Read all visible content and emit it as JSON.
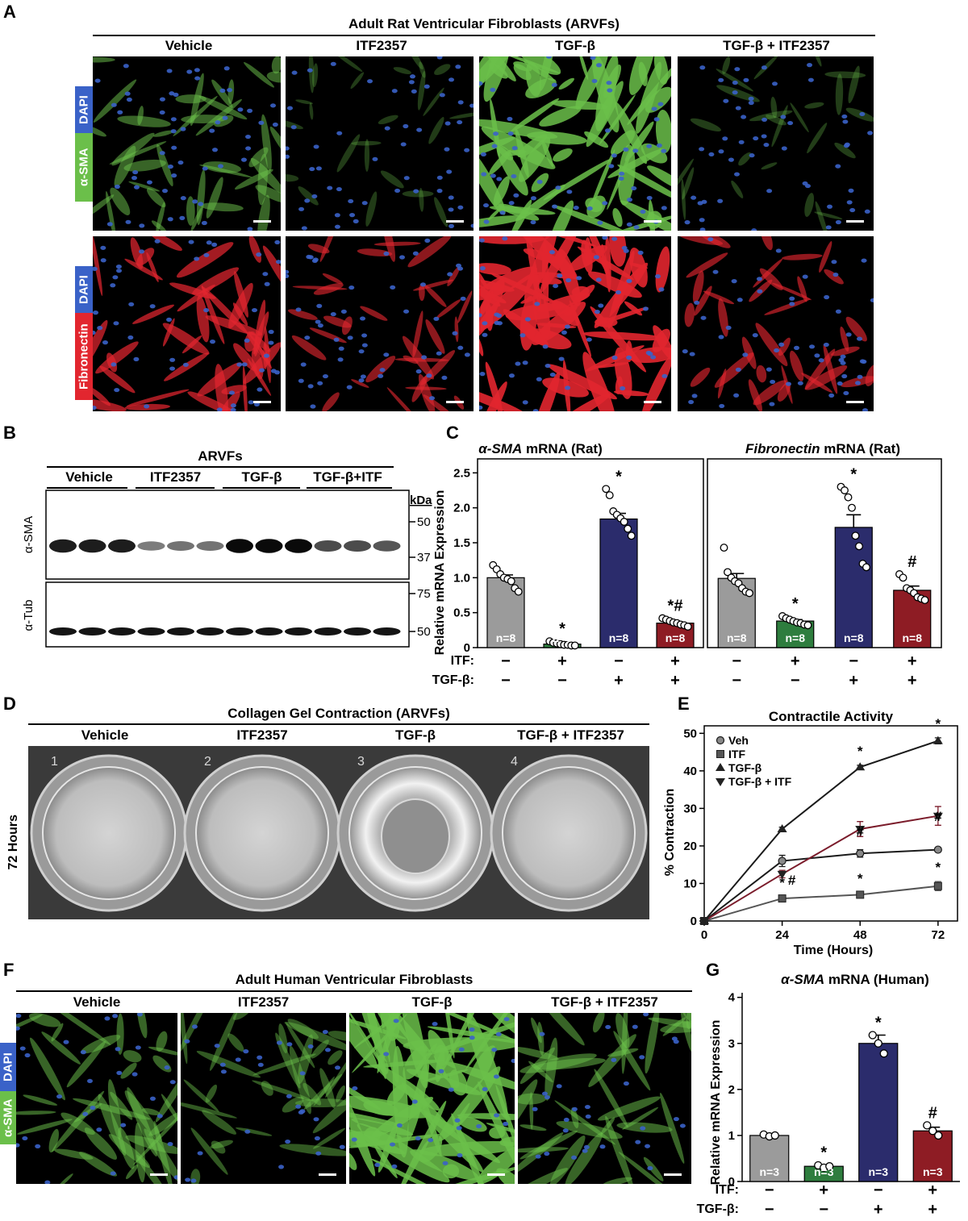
{
  "panels": {
    "A": {
      "label": "A",
      "title": "Adult Rat Ventricular Fibroblasts (ARVFs)",
      "columns": [
        "Vehicle",
        "ITF2357",
        "TGF-β",
        "TGF-β + ITF2357"
      ],
      "row1_tags": [
        "DAPI",
        "α-SMA"
      ],
      "row2_tags": [
        "DAPI",
        "Fibronectin"
      ],
      "colors": {
        "dapi": "#3a62c8",
        "sma": "#6bbf4a",
        "fibronectin": "#e2262f"
      }
    },
    "B": {
      "label": "B",
      "title": "ARVFs",
      "lanes": [
        "Vehicle",
        "ITF2357",
        "TGF-β",
        "TGF-β+ITF"
      ],
      "blot1_label": "α-SMA",
      "blot2_label": "α-Tub",
      "kda_label": "kDa",
      "markers_top": [
        "50",
        "37"
      ],
      "markers_bottom": [
        "75",
        "50"
      ],
      "sma_band_intensity": [
        0.85,
        0.85,
        0.85,
        0.35,
        0.4,
        0.4,
        0.95,
        0.95,
        0.95,
        0.6,
        0.6,
        0.55
      ]
    },
    "C": {
      "label": "C",
      "title_left_italic": "α-SMA",
      "title_left_rest": " mRNA (Rat)",
      "title_right_italic": "Fibronectin",
      "title_right_rest": " mRNA (Rat)",
      "ylabel": "Relative mRNA Expression",
      "yticks": [
        "0",
        "0.5",
        "1.0",
        "1.5",
        "2.0",
        "2.5"
      ],
      "row_itf_label": "ITF:",
      "row_tgf_label": "TGF-β:",
      "itf_signs": [
        "−",
        "+",
        "−",
        "+",
        "−",
        "+",
        "−",
        "+"
      ],
      "tgf_signs": [
        "−",
        "−",
        "+",
        "+",
        "−",
        "−",
        "+",
        "+"
      ]
    },
    "D": {
      "label": "D",
      "title": "Collagen Gel Contraction (ARVFs)",
      "columns": [
        "Vehicle",
        "ITF2357",
        "TGF-β",
        "TGF-β + ITF2357"
      ],
      "side_label": "72 Hours",
      "well_numbers": [
        "1",
        "2",
        "3",
        "4"
      ]
    },
    "E": {
      "label": "E",
      "title": "Contractile Activity",
      "ylabel": "% Contraction",
      "xlabel": "Time (Hours)",
      "legend": [
        "Veh",
        "ITF",
        "TGF-β",
        "TGF-β + ITF"
      ]
    },
    "F": {
      "label": "F",
      "title": "Adult Human Ventricular Fibroblasts",
      "columns": [
        "Vehicle",
        "ITF2357",
        "TGF-β",
        "TGF-β + ITF2357"
      ],
      "tags": [
        "DAPI",
        "α-SMA"
      ]
    },
    "G": {
      "label": "G",
      "title_italic": "α-SMA",
      "title_rest": " mRNA (Human)",
      "ylabel": "Relative mRNA Expression",
      "yticks": [
        "0",
        "1",
        "2",
        "3",
        "4"
      ],
      "row_itf_label": "ITF:",
      "row_tgf_label": "TGF-β:",
      "itf_signs": [
        "−",
        "+",
        "−",
        "+"
      ],
      "tgf_signs": [
        "−",
        "−",
        "+",
        "+"
      ]
    }
  },
  "chart_data": [
    {
      "type": "bar",
      "panel": "C-left",
      "title": "α-SMA mRNA (Rat)",
      "ylabel": "Relative mRNA Expression",
      "ylim": [
        0,
        2.7
      ],
      "categories": [
        "Vehicle",
        "ITF",
        "TGF-β",
        "TGF-β + ITF"
      ],
      "values": [
        1.0,
        0.05,
        1.84,
        0.35
      ],
      "errors": [
        0.04,
        0.01,
        0.08,
        0.02
      ],
      "n_labels": [
        "n=8",
        "n=8",
        "n=8",
        "n=8"
      ],
      "significance": [
        "",
        "*",
        "*",
        "*#"
      ],
      "colors": [
        "#9b9b9b",
        "#2e7d3e",
        "#2b2c6c",
        "#8e1c24"
      ],
      "points": [
        [
          1.18,
          1.12,
          1.05,
          1.0,
          0.98,
          0.95,
          0.85,
          0.8
        ],
        [
          0.09,
          0.07,
          0.06,
          0.05,
          0.04,
          0.04,
          0.03,
          0.03
        ],
        [
          2.27,
          2.18,
          1.95,
          1.9,
          1.85,
          1.8,
          1.7,
          1.6
        ],
        [
          0.42,
          0.4,
          0.38,
          0.36,
          0.35,
          0.33,
          0.32,
          0.3
        ]
      ]
    },
    {
      "type": "bar",
      "panel": "C-right",
      "title": "Fibronectin mRNA (Rat)",
      "ylabel": "Relative mRNA Expression",
      "ylim": [
        0,
        2.7
      ],
      "categories": [
        "Vehicle",
        "ITF",
        "TGF-β",
        "TGF-β + ITF"
      ],
      "values": [
        0.99,
        0.38,
        1.72,
        0.82
      ],
      "errors": [
        0.07,
        0.02,
        0.18,
        0.06
      ],
      "n_labels": [
        "n=8",
        "n=8",
        "n=8",
        "n=8"
      ],
      "significance": [
        "",
        "*",
        "*",
        "#"
      ],
      "colors": [
        "#9b9b9b",
        "#2e7d3e",
        "#2b2c6c",
        "#8e1c24"
      ],
      "points": [
        [
          1.43,
          1.08,
          1.0,
          0.95,
          0.92,
          0.85,
          0.8,
          0.78
        ],
        [
          0.45,
          0.42,
          0.4,
          0.38,
          0.36,
          0.35,
          0.33,
          0.32
        ],
        [
          2.3,
          2.25,
          2.15,
          2.0,
          1.6,
          1.45,
          1.2,
          1.15
        ],
        [
          1.05,
          1.0,
          0.85,
          0.82,
          0.78,
          0.72,
          0.7,
          0.68
        ]
      ]
    },
    {
      "type": "line",
      "panel": "E",
      "title": "Contractile Activity",
      "xlabel": "Time (Hours)",
      "ylabel": "% Contraction",
      "x": [
        0,
        24,
        48,
        72
      ],
      "xlim": [
        0,
        78
      ],
      "ylim": [
        0,
        52
      ],
      "xticks": [
        0,
        24,
        48,
        72
      ],
      "yticks": [
        0,
        10,
        20,
        30,
        40,
        50
      ],
      "series": [
        {
          "name": "Veh",
          "values": [
            0,
            16,
            18,
            19
          ],
          "errors": [
            0,
            1.5,
            1,
            0.5
          ],
          "color": "#1a1a1a",
          "marker": "circle",
          "significance": [
            "",
            "",
            "",
            ""
          ]
        },
        {
          "name": "ITF",
          "values": [
            0,
            6,
            7,
            9.3
          ],
          "errors": [
            0,
            0.5,
            0.5,
            1.2
          ],
          "color": "#555555",
          "marker": "square",
          "significance": [
            "",
            "*",
            "*",
            "*"
          ]
        },
        {
          "name": "TGF-β",
          "values": [
            0,
            24.5,
            41,
            48
          ],
          "errors": [
            0,
            0.5,
            0.5,
            0.8
          ],
          "color": "#1a1a1a",
          "marker": "triangle-up",
          "significance": [
            "",
            "",
            "*",
            "*"
          ]
        },
        {
          "name": "TGF-β + ITF",
          "values": [
            0,
            12.5,
            24.5,
            28
          ],
          "errors": [
            0,
            1,
            2,
            2.5
          ],
          "color": "#7b1c2b",
          "marker": "triangle-down",
          "significance": [
            "",
            "#",
            "#",
            "#"
          ]
        }
      ],
      "legend_position": "top-left"
    },
    {
      "type": "bar",
      "panel": "G",
      "title": "α-SMA mRNA (Human)",
      "ylabel": "Relative mRNA Expression",
      "ylim": [
        0,
        4.1
      ],
      "categories": [
        "Vehicle",
        "ITF",
        "TGF-β",
        "TGF-β + ITF"
      ],
      "values": [
        1.0,
        0.33,
        3.0,
        1.1
      ],
      "errors": [
        0.02,
        0.03,
        0.18,
        0.08
      ],
      "n_labels": [
        "n=3",
        "n=3",
        "n=3",
        "n=3"
      ],
      "significance": [
        "",
        "*",
        "*",
        "#"
      ],
      "colors": [
        "#9b9b9b",
        "#2e7d3e",
        "#2b2c6c",
        "#8e1c24"
      ],
      "points": [
        [
          1.02,
          0.98,
          1.0
        ],
        [
          0.35,
          0.3,
          0.33
        ],
        [
          3.18,
          3.0,
          2.78
        ],
        [
          1.22,
          1.1,
          1.0
        ]
      ]
    }
  ]
}
